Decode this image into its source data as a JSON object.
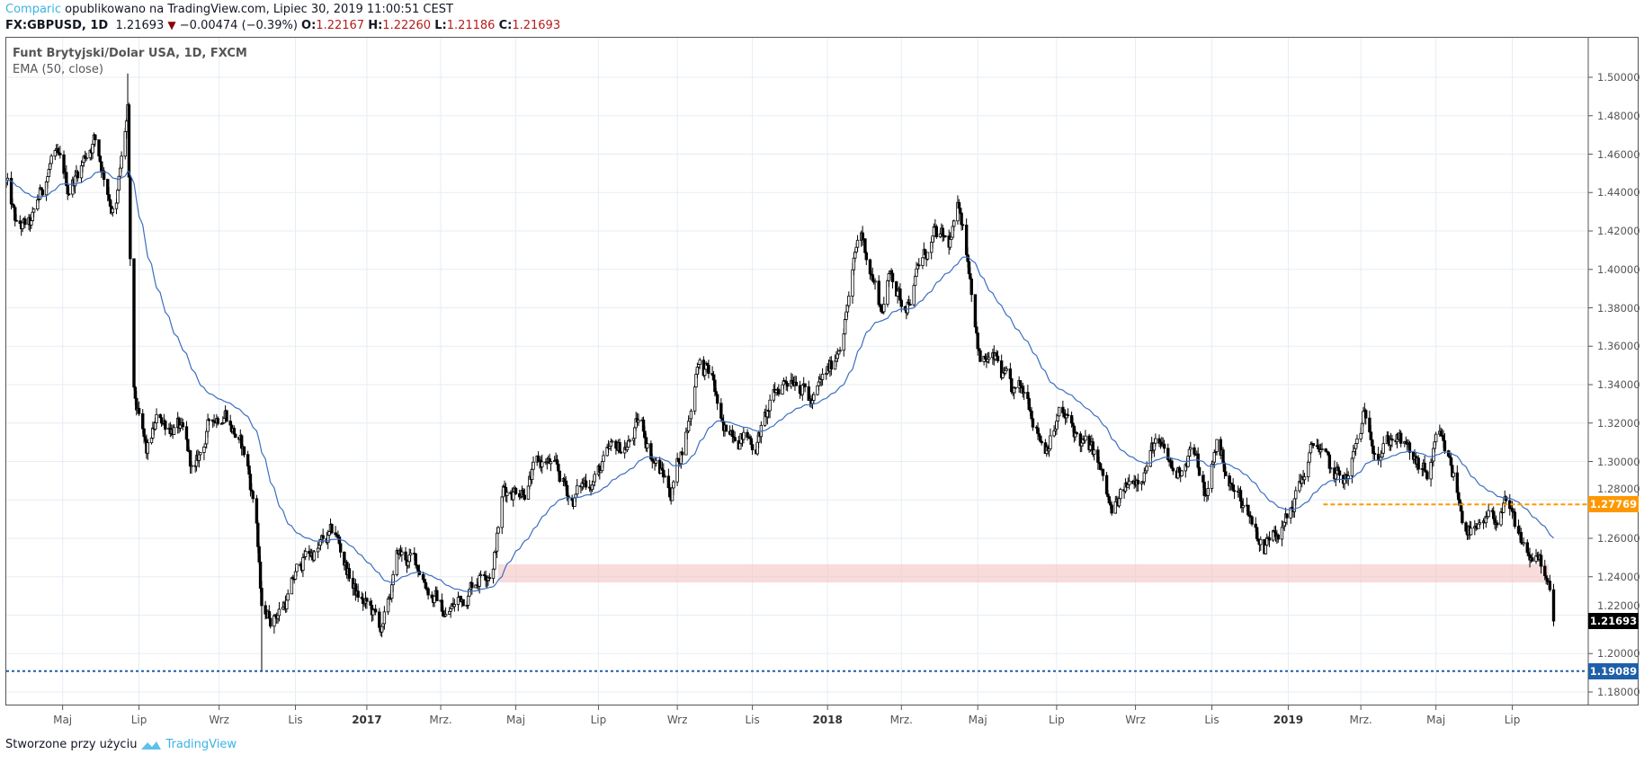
{
  "header": {
    "author": "Comparic",
    "published_text": "opublikowano na TradingView.com, Lipiec 30, 2019 11:00:51 CEST",
    "symbol": "FX:GBPUSD, 1D",
    "last": "1.21693",
    "change": "−0.00474 (−0.39%)",
    "o_label": "O:",
    "o": "1.22167",
    "h_label": "H:",
    "h": "1.22260",
    "l_label": "L:",
    "l": "1.21186",
    "c_label": "C:",
    "c": "1.21693",
    "down_color": "#8b0000"
  },
  "legend": {
    "title": "Funt Brytyjski/Dolar USA, 1D, FXCM",
    "indicator": "EMA (50, close)"
  },
  "price_axis": [
    "1.50000",
    "1.48000",
    "1.46000",
    "1.44000",
    "1.42000",
    "1.40000",
    "1.38000",
    "1.36000",
    "1.34000",
    "1.32000",
    "1.30000",
    "1.28000",
    "1.26000",
    "1.24000",
    "1.22000",
    "1.20000",
    "1.18000"
  ],
  "time_axis": [
    {
      "label": "Maj",
      "day": 45
    },
    {
      "label": "Lip",
      "day": 106
    },
    {
      "label": "Wrz",
      "day": 170
    },
    {
      "label": "Lis",
      "day": 231
    },
    {
      "label": "2017",
      "day": 288,
      "year": true
    },
    {
      "label": "Mrz.",
      "day": 347
    },
    {
      "label": "Maj",
      "day": 407
    },
    {
      "label": "Lip",
      "day": 473
    },
    {
      "label": "Wrz",
      "day": 536
    },
    {
      "label": "Lis",
      "day": 596
    },
    {
      "label": "2018",
      "day": 656,
      "year": true
    },
    {
      "label": "Mrz.",
      "day": 715
    },
    {
      "label": "Maj",
      "day": 776
    },
    {
      "label": "Lip",
      "day": 839
    },
    {
      "label": "Wrz",
      "day": 902
    },
    {
      "label": "Lis",
      "day": 963
    },
    {
      "label": "2019",
      "day": 1024,
      "year": true
    },
    {
      "label": "Mrz.",
      "day": 1082
    },
    {
      "label": "Maj",
      "day": 1142
    },
    {
      "label": "Lip",
      "day": 1203
    }
  ],
  "levels": {
    "resistance": {
      "value": "1.27769",
      "price": 1.27769,
      "from_day": 1052,
      "color": "#ff9800"
    },
    "support": {
      "value": "1.19089",
      "price": 1.19089,
      "color": "#1f5fa8"
    },
    "current": {
      "value": "1.21693",
      "price": 1.21693,
      "color": "#000000"
    },
    "zone": {
      "low": 1.237,
      "high": 1.2465,
      "from_day": 393,
      "to_day": 1232,
      "color": "#f4c7c7"
    }
  },
  "footer": {
    "text": "Stworzone przy użyciu",
    "brand": "TradingView"
  },
  "chart_data": {
    "type": "candlestick",
    "symbol": "GBPUSD",
    "ylim": [
      1.17,
      1.51
    ],
    "ema_period": 50,
    "ema_color": "#3c6ebf",
    "approx_close_path": [
      [
        0,
        1.445
      ],
      [
        8,
        1.42
      ],
      [
        20,
        1.42
      ],
      [
        37,
        1.46
      ],
      [
        49,
        1.44
      ],
      [
        70,
        1.47
      ],
      [
        87,
        1.43
      ],
      [
        97,
        1.48
      ],
      [
        100,
        1.36
      ],
      [
        102,
        1.33
      ],
      [
        112,
        1.3
      ],
      [
        121,
        1.32
      ],
      [
        137,
        1.32
      ],
      [
        150,
        1.29
      ],
      [
        163,
        1.32
      ],
      [
        175,
        1.33
      ],
      [
        192,
        1.3
      ],
      [
        200,
        1.27
      ],
      [
        204,
        1.22
      ],
      [
        213,
        1.22
      ],
      [
        225,
        1.23
      ],
      [
        238,
        1.25
      ],
      [
        263,
        1.26
      ],
      [
        280,
        1.23
      ],
      [
        292,
        1.22
      ],
      [
        301,
        1.21
      ],
      [
        313,
        1.25
      ],
      [
        330,
        1.245
      ],
      [
        351,
        1.22
      ],
      [
        359,
        1.225
      ],
      [
        380,
        1.245
      ],
      [
        389,
        1.25
      ],
      [
        397,
        1.285
      ],
      [
        414,
        1.29
      ],
      [
        431,
        1.3
      ],
      [
        452,
        1.28
      ],
      [
        464,
        1.29
      ],
      [
        481,
        1.3
      ],
      [
        498,
        1.31
      ],
      [
        506,
        1.32
      ],
      [
        519,
        1.3
      ],
      [
        531,
        1.285
      ],
      [
        548,
        1.33
      ],
      [
        552,
        1.355
      ],
      [
        565,
        1.34
      ],
      [
        573,
        1.31
      ],
      [
        582,
        1.32
      ],
      [
        598,
        1.31
      ],
      [
        619,
        1.34
      ],
      [
        632,
        1.35
      ],
      [
        644,
        1.33
      ],
      [
        661,
        1.35
      ],
      [
        674,
        1.39
      ],
      [
        682,
        1.42
      ],
      [
        691,
        1.4
      ],
      [
        699,
        1.38
      ],
      [
        707,
        1.4
      ],
      [
        716,
        1.38
      ],
      [
        728,
        1.4
      ],
      [
        741,
        1.415
      ],
      [
        753,
        1.41
      ],
      [
        762,
        1.43
      ],
      [
        770,
        1.4
      ],
      [
        778,
        1.355
      ],
      [
        791,
        1.35
      ],
      [
        804,
        1.33
      ],
      [
        816,
        1.335
      ],
      [
        829,
        1.31
      ],
      [
        841,
        1.325
      ],
      [
        858,
        1.31
      ],
      [
        871,
        1.3
      ],
      [
        883,
        1.27
      ],
      [
        900,
        1.29
      ],
      [
        917,
        1.31
      ],
      [
        934,
        1.29
      ],
      [
        946,
        1.31
      ],
      [
        959,
        1.28
      ],
      [
        967,
        1.31
      ],
      [
        980,
        1.285
      ],
      [
        992,
        1.275
      ],
      [
        1005,
        1.255
      ],
      [
        1013,
        1.27
      ],
      [
        1024,
        1.27
      ],
      [
        1034,
        1.29
      ],
      [
        1047,
        1.31
      ],
      [
        1059,
        1.29
      ],
      [
        1072,
        1.29
      ],
      [
        1084,
        1.32
      ],
      [
        1097,
        1.31
      ],
      [
        1110,
        1.315
      ],
      [
        1122,
        1.3
      ],
      [
        1135,
        1.29
      ],
      [
        1143,
        1.31
      ],
      [
        1156,
        1.29
      ],
      [
        1164,
        1.27
      ],
      [
        1177,
        1.26
      ],
      [
        1189,
        1.27
      ],
      [
        1198,
        1.275
      ],
      [
        1206,
        1.26
      ],
      [
        1218,
        1.25
      ],
      [
        1227,
        1.245
      ],
      [
        1234,
        1.225
      ],
      [
        1236,
        1.21693
      ]
    ],
    "extremes": [
      {
        "day": 97,
        "high": 1.502
      },
      {
        "day": 204,
        "low": 1.1909
      },
      {
        "day": 1024,
        "low": 1.237
      }
    ]
  }
}
